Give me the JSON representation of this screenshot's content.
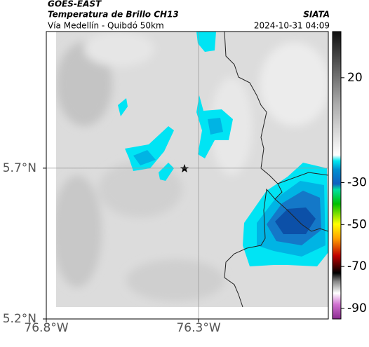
{
  "header": {
    "agency": "GOES-EAST",
    "title": "Temperatura de Brillo CH13",
    "subtitle": "Vía Medellín - Quibdó 50km",
    "source": "SIATA",
    "timestamp": "2024-10-31 04:09"
  },
  "map": {
    "xlim": [
      -76.8,
      -75.874
    ],
    "ylim": [
      5.2,
      6.153
    ],
    "xticks": [
      {
        "value": -76.8,
        "label": "76.8°W"
      },
      {
        "value": -76.3,
        "label": "76.3°W"
      }
    ],
    "yticks": [
      {
        "value": 5.2,
        "label": "5.2°N"
      },
      {
        "value": 5.7,
        "label": "5.7°N"
      }
    ],
    "grid": true
  },
  "colorbar": {
    "lim": [
      -95,
      42
    ],
    "ticks": [
      20,
      -30,
      -50,
      -70,
      -90
    ]
  }
}
